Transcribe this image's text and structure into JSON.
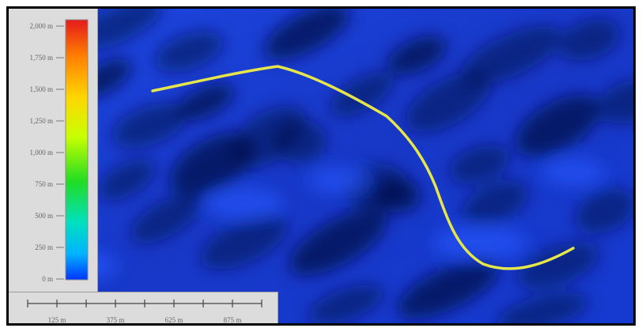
{
  "map": {
    "legend": {
      "title": "",
      "ticks": [
        "2,000 m",
        "1,750 m",
        "1,500 m",
        "1,250 m",
        "1,000 m",
        "750 m",
        "500 m",
        "250 m",
        "0 m"
      ],
      "gradient_colors": [
        "#e41a1c",
        "#ff7f00",
        "#ffd700",
        "#c8ff00",
        "#22dd22",
        "#00e0c0",
        "#00b4ff",
        "#0033ff"
      ]
    },
    "scale_bar": {
      "labels": [
        "125 m",
        "375 m",
        "625 m",
        "875 m"
      ]
    },
    "colors": {
      "track": "#e6e64a",
      "terrain_base": "#1a3fd6",
      "terrain_dark": "#06124a"
    }
  }
}
